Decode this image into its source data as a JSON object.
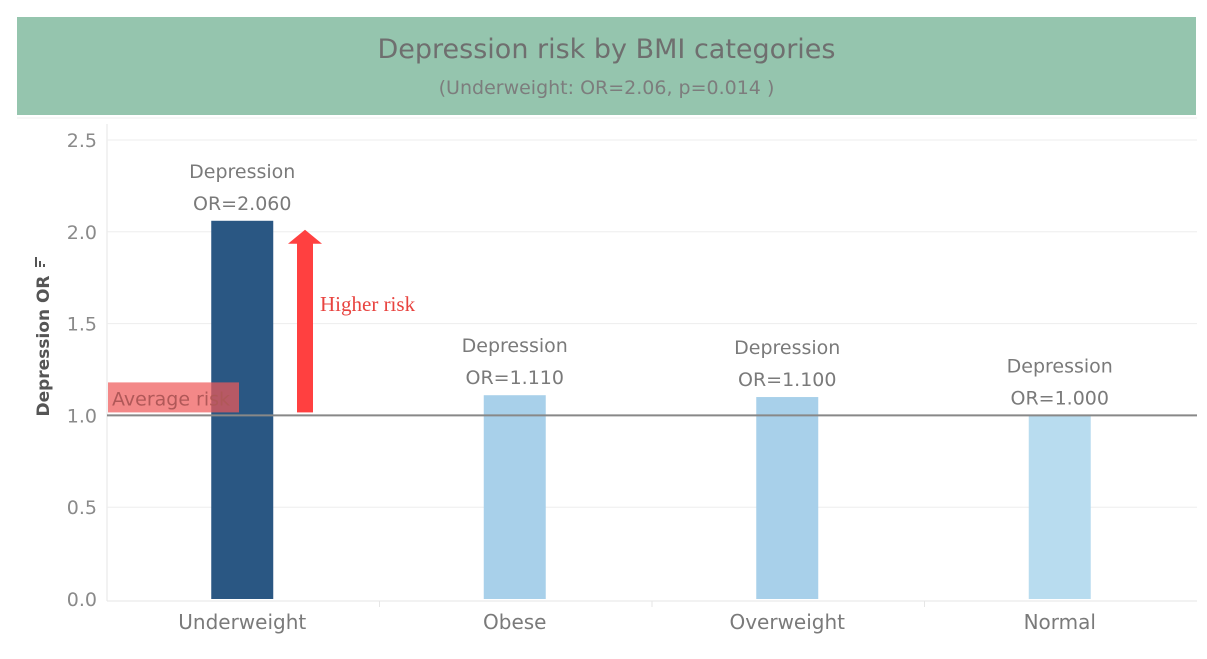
{
  "header": {
    "title": "Depression risk by BMI categories",
    "subtitle": "(Underweight: OR=2.06, p=0.014 )"
  },
  "colors": {
    "title_band": "#95c5ae",
    "highlight_bar": "#2a5783",
    "light_bar": "#a8d0ea",
    "lightest_bar": "#b8dcef",
    "reference_line": "#888888",
    "annotation_red": "#ff4040"
  },
  "annotations": {
    "higher_risk": "Higher risk",
    "average_risk": "Average risk"
  },
  "chart_data": {
    "type": "bar",
    "title": "Depression risk by BMI categories",
    "subtitle": "(Underweight: OR=2.06, p=0.014 )",
    "xlabel": "",
    "ylabel": "Depression OR",
    "ylim": [
      0,
      2.5
    ],
    "yticks": [
      0.0,
      0.5,
      1.0,
      1.5,
      2.0,
      2.5
    ],
    "ytick_labels": [
      "0.0",
      "0.5",
      "1.0",
      "1.5",
      "2.0",
      "2.5"
    ],
    "categories": [
      "Underweight",
      "Obese",
      "Overweight",
      "Normal"
    ],
    "values": [
      2.06,
      1.11,
      1.1,
      1.0
    ],
    "data_label_prefix": "Depression",
    "data_labels": [
      "OR=2.060",
      "OR=1.110",
      "OR=1.100",
      "OR=1.000"
    ],
    "bar_colors": [
      "#2a5783",
      "#a8d0ea",
      "#a8d0ea",
      "#b8dcef"
    ],
    "reference_line": {
      "value": 1.0,
      "label": "Average risk"
    },
    "arrow": {
      "from": 1.0,
      "to": 2.0,
      "label": "Higher risk"
    },
    "grid": true,
    "legend": "none"
  }
}
